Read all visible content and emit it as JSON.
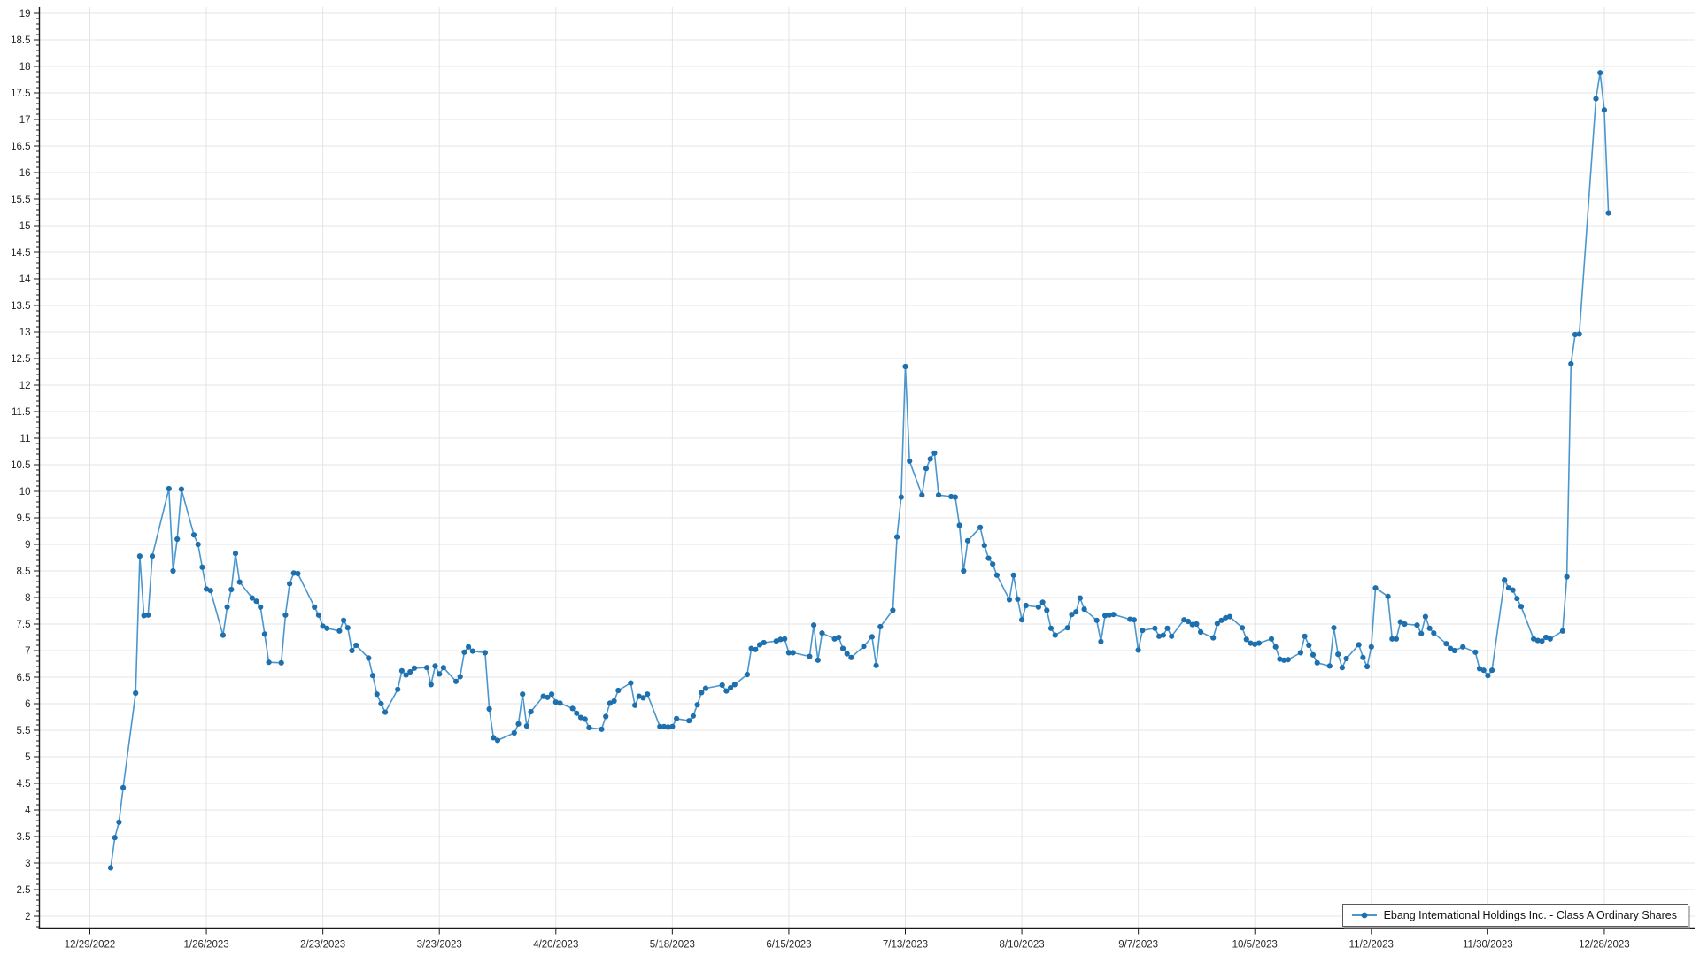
{
  "legend": {
    "label": "Ebang International Holdings Inc. - Class A Ordinary Shares"
  },
  "chart_data": {
    "type": "line",
    "title": "",
    "xlabel": "",
    "ylabel": "",
    "grid": true,
    "legend_position": "bottom-right",
    "colors": {
      "line": "#4a96ce",
      "marker": "#1d6fad",
      "grid": "#e4e4e4",
      "axis": "#1a1a1a",
      "text": "#262626"
    },
    "y_axis": {
      "min_label": 2,
      "max_label": 19,
      "label_step": 0.5,
      "minor_step": 0.1,
      "axis_min": 1.78
    },
    "x_origin_date": "2022-12-29",
    "x_ticks": [
      {
        "label": "12/29/2022",
        "date": "2022-12-29"
      },
      {
        "label": "1/26/2023",
        "date": "2023-01-26"
      },
      {
        "label": "2/23/2023",
        "date": "2023-02-23"
      },
      {
        "label": "3/23/2023",
        "date": "2023-03-23"
      },
      {
        "label": "4/20/2023",
        "date": "2023-04-20"
      },
      {
        "label": "5/18/2023",
        "date": "2023-05-18"
      },
      {
        "label": "6/15/2023",
        "date": "2023-06-15"
      },
      {
        "label": "7/13/2023",
        "date": "2023-07-13"
      },
      {
        "label": "8/10/2023",
        "date": "2023-08-10"
      },
      {
        "label": "9/7/2023",
        "date": "2023-09-07"
      },
      {
        "label": "10/5/2023",
        "date": "2023-10-05"
      },
      {
        "label": "11/2/2023",
        "date": "2023-11-02"
      },
      {
        "label": "11/30/2023",
        "date": "2023-11-30"
      },
      {
        "label": "12/28/2023",
        "date": "2023-12-28"
      }
    ],
    "series": [
      {
        "name": "Ebang International Holdings Inc. - Class A Ordinary Shares",
        "points": [
          [
            "2023-01-03",
            2.91
          ],
          [
            "2023-01-04",
            3.48
          ],
          [
            "2023-01-05",
            3.77
          ],
          [
            "2023-01-06",
            4.42
          ],
          [
            "2023-01-09",
            6.2
          ],
          [
            "2023-01-10",
            8.78
          ],
          [
            "2023-01-11",
            7.66
          ],
          [
            "2023-01-12",
            7.67
          ],
          [
            "2023-01-13",
            8.78
          ],
          [
            "2023-01-17",
            10.05
          ],
          [
            "2023-01-18",
            8.5
          ],
          [
            "2023-01-19",
            9.1
          ],
          [
            "2023-01-20",
            10.04
          ],
          [
            "2023-01-23",
            9.18
          ],
          [
            "2023-01-24",
            9.0
          ],
          [
            "2023-01-25",
            8.57
          ],
          [
            "2023-01-26",
            8.16
          ],
          [
            "2023-01-27",
            8.13
          ],
          [
            "2023-01-30",
            7.29
          ],
          [
            "2023-01-31",
            7.82
          ],
          [
            "2023-02-01",
            8.15
          ],
          [
            "2023-02-02",
            8.83
          ],
          [
            "2023-02-03",
            8.29
          ],
          [
            "2023-02-06",
            7.99
          ],
          [
            "2023-02-07",
            7.93
          ],
          [
            "2023-02-08",
            7.82
          ],
          [
            "2023-02-09",
            7.31
          ],
          [
            "2023-02-10",
            6.78
          ],
          [
            "2023-02-13",
            6.77
          ],
          [
            "2023-02-14",
            7.67
          ],
          [
            "2023-02-15",
            8.26
          ],
          [
            "2023-02-16",
            8.46
          ],
          [
            "2023-02-17",
            8.45
          ],
          [
            "2023-02-21",
            7.82
          ],
          [
            "2023-02-22",
            7.67
          ],
          [
            "2023-02-23",
            7.46
          ],
          [
            "2023-02-24",
            7.42
          ],
          [
            "2023-02-27",
            7.37
          ],
          [
            "2023-02-28",
            7.57
          ],
          [
            "2023-03-01",
            7.43
          ],
          [
            "2023-03-02",
            7.0
          ],
          [
            "2023-03-03",
            7.1
          ],
          [
            "2023-03-06",
            6.86
          ],
          [
            "2023-03-07",
            6.53
          ],
          [
            "2023-03-08",
            6.18
          ],
          [
            "2023-03-09",
            6.0
          ],
          [
            "2023-03-10",
            5.84
          ],
          [
            "2023-03-13",
            6.27
          ],
          [
            "2023-03-14",
            6.62
          ],
          [
            "2023-03-15",
            6.54
          ],
          [
            "2023-03-16",
            6.6
          ],
          [
            "2023-03-17",
            6.67
          ],
          [
            "2023-03-20",
            6.68
          ],
          [
            "2023-03-21",
            6.36
          ],
          [
            "2023-03-22",
            6.71
          ],
          [
            "2023-03-23",
            6.56
          ],
          [
            "2023-03-24",
            6.68
          ],
          [
            "2023-03-27",
            6.42
          ],
          [
            "2023-03-28",
            6.51
          ],
          [
            "2023-03-29",
            6.97
          ],
          [
            "2023-03-30",
            7.07
          ],
          [
            "2023-03-31",
            6.99
          ],
          [
            "2023-04-03",
            6.96
          ],
          [
            "2023-04-04",
            5.9
          ],
          [
            "2023-04-05",
            5.36
          ],
          [
            "2023-04-06",
            5.31
          ],
          [
            "2023-04-10",
            5.45
          ],
          [
            "2023-04-11",
            5.62
          ],
          [
            "2023-04-12",
            6.18
          ],
          [
            "2023-04-13",
            5.58
          ],
          [
            "2023-04-14",
            5.85
          ],
          [
            "2023-04-17",
            6.14
          ],
          [
            "2023-04-18",
            6.12
          ],
          [
            "2023-04-19",
            6.18
          ],
          [
            "2023-04-20",
            6.03
          ],
          [
            "2023-04-21",
            6.01
          ],
          [
            "2023-04-24",
            5.91
          ],
          [
            "2023-04-25",
            5.82
          ],
          [
            "2023-04-26",
            5.74
          ],
          [
            "2023-04-27",
            5.71
          ],
          [
            "2023-04-28",
            5.55
          ],
          [
            "2023-05-01",
            5.52
          ],
          [
            "2023-05-02",
            5.76
          ],
          [
            "2023-05-03",
            6.01
          ],
          [
            "2023-05-04",
            6.05
          ],
          [
            "2023-05-05",
            6.25
          ],
          [
            "2023-05-08",
            6.39
          ],
          [
            "2023-05-09",
            5.97
          ],
          [
            "2023-05-10",
            6.14
          ],
          [
            "2023-05-11",
            6.11
          ],
          [
            "2023-05-12",
            6.18
          ],
          [
            "2023-05-15",
            5.57
          ],
          [
            "2023-05-16",
            5.57
          ],
          [
            "2023-05-17",
            5.56
          ],
          [
            "2023-05-18",
            5.57
          ],
          [
            "2023-05-19",
            5.72
          ],
          [
            "2023-05-22",
            5.68
          ],
          [
            "2023-05-23",
            5.77
          ],
          [
            "2023-05-24",
            5.98
          ],
          [
            "2023-05-25",
            6.21
          ],
          [
            "2023-05-26",
            6.29
          ],
          [
            "2023-05-30",
            6.35
          ],
          [
            "2023-05-31",
            6.24
          ],
          [
            "2023-06-01",
            6.3
          ],
          [
            "2023-06-02",
            6.36
          ],
          [
            "2023-06-05",
            6.55
          ],
          [
            "2023-06-06",
            7.04
          ],
          [
            "2023-06-07",
            7.02
          ],
          [
            "2023-06-08",
            7.11
          ],
          [
            "2023-06-09",
            7.15
          ],
          [
            "2023-06-12",
            7.18
          ],
          [
            "2023-06-13",
            7.21
          ],
          [
            "2023-06-14",
            7.22
          ],
          [
            "2023-06-15",
            6.96
          ],
          [
            "2023-06-16",
            6.96
          ],
          [
            "2023-06-20",
            6.89
          ],
          [
            "2023-06-21",
            7.48
          ],
          [
            "2023-06-22",
            6.82
          ],
          [
            "2023-06-23",
            7.33
          ],
          [
            "2023-06-26",
            7.22
          ],
          [
            "2023-06-27",
            7.25
          ],
          [
            "2023-06-28",
            7.04
          ],
          [
            "2023-06-29",
            6.94
          ],
          [
            "2023-06-30",
            6.87
          ],
          [
            "2023-07-03",
            7.08
          ],
          [
            "2023-07-05",
            7.26
          ],
          [
            "2023-07-06",
            6.72
          ],
          [
            "2023-07-07",
            7.45
          ],
          [
            "2023-07-10",
            7.76
          ],
          [
            "2023-07-11",
            9.14
          ],
          [
            "2023-07-12",
            9.89
          ],
          [
            "2023-07-13",
            12.35
          ],
          [
            "2023-07-14",
            10.57
          ],
          [
            "2023-07-17",
            9.93
          ],
          [
            "2023-07-18",
            10.43
          ],
          [
            "2023-07-19",
            10.61
          ],
          [
            "2023-07-20",
            10.72
          ],
          [
            "2023-07-21",
            9.93
          ],
          [
            "2023-07-24",
            9.9
          ],
          [
            "2023-07-25",
            9.89
          ],
          [
            "2023-07-26",
            9.36
          ],
          [
            "2023-07-27",
            8.5
          ],
          [
            "2023-07-28",
            9.07
          ],
          [
            "2023-07-31",
            9.32
          ],
          [
            "2023-08-01",
            8.98
          ],
          [
            "2023-08-02",
            8.74
          ],
          [
            "2023-08-03",
            8.63
          ],
          [
            "2023-08-04",
            8.42
          ],
          [
            "2023-08-07",
            7.96
          ],
          [
            "2023-08-08",
            8.42
          ],
          [
            "2023-08-09",
            7.97
          ],
          [
            "2023-08-10",
            7.58
          ],
          [
            "2023-08-11",
            7.85
          ],
          [
            "2023-08-14",
            7.82
          ],
          [
            "2023-08-15",
            7.91
          ],
          [
            "2023-08-16",
            7.76
          ],
          [
            "2023-08-17",
            7.42
          ],
          [
            "2023-08-18",
            7.29
          ],
          [
            "2023-08-21",
            7.43
          ],
          [
            "2023-08-22",
            7.68
          ],
          [
            "2023-08-23",
            7.73
          ],
          [
            "2023-08-24",
            7.99
          ],
          [
            "2023-08-25",
            7.78
          ],
          [
            "2023-08-28",
            7.57
          ],
          [
            "2023-08-29",
            7.17
          ],
          [
            "2023-08-30",
            7.66
          ],
          [
            "2023-08-31",
            7.67
          ],
          [
            "2023-09-01",
            7.68
          ],
          [
            "2023-09-05",
            7.59
          ],
          [
            "2023-09-06",
            7.58
          ],
          [
            "2023-09-07",
            7.01
          ],
          [
            "2023-09-08",
            7.38
          ],
          [
            "2023-09-11",
            7.42
          ],
          [
            "2023-09-12",
            7.27
          ],
          [
            "2023-09-13",
            7.29
          ],
          [
            "2023-09-14",
            7.42
          ],
          [
            "2023-09-15",
            7.27
          ],
          [
            "2023-09-18",
            7.58
          ],
          [
            "2023-09-19",
            7.55
          ],
          [
            "2023-09-20",
            7.49
          ],
          [
            "2023-09-21",
            7.5
          ],
          [
            "2023-09-22",
            7.35
          ],
          [
            "2023-09-25",
            7.24
          ],
          [
            "2023-09-26",
            7.51
          ],
          [
            "2023-09-27",
            7.57
          ],
          [
            "2023-09-28",
            7.62
          ],
          [
            "2023-09-29",
            7.64
          ],
          [
            "2023-10-02",
            7.43
          ],
          [
            "2023-10-03",
            7.21
          ],
          [
            "2023-10-04",
            7.14
          ],
          [
            "2023-10-05",
            7.12
          ],
          [
            "2023-10-06",
            7.14
          ],
          [
            "2023-10-09",
            7.22
          ],
          [
            "2023-10-10",
            7.07
          ],
          [
            "2023-10-11",
            6.84
          ],
          [
            "2023-10-12",
            6.82
          ],
          [
            "2023-10-13",
            6.83
          ],
          [
            "2023-10-16",
            6.96
          ],
          [
            "2023-10-17",
            7.27
          ],
          [
            "2023-10-18",
            7.1
          ],
          [
            "2023-10-19",
            6.92
          ],
          [
            "2023-10-20",
            6.77
          ],
          [
            "2023-10-23",
            6.71
          ],
          [
            "2023-10-24",
            7.43
          ],
          [
            "2023-10-25",
            6.93
          ],
          [
            "2023-10-26",
            6.68
          ],
          [
            "2023-10-27",
            6.85
          ],
          [
            "2023-10-30",
            7.11
          ],
          [
            "2023-10-31",
            6.87
          ],
          [
            "2023-11-01",
            6.7
          ],
          [
            "2023-11-02",
            7.07
          ],
          [
            "2023-11-03",
            8.18
          ],
          [
            "2023-11-06",
            8.02
          ],
          [
            "2023-11-07",
            7.22
          ],
          [
            "2023-11-08",
            7.22
          ],
          [
            "2023-11-09",
            7.54
          ],
          [
            "2023-11-10",
            7.5
          ],
          [
            "2023-11-13",
            7.48
          ],
          [
            "2023-11-14",
            7.32
          ],
          [
            "2023-11-15",
            7.64
          ],
          [
            "2023-11-16",
            7.42
          ],
          [
            "2023-11-17",
            7.33
          ],
          [
            "2023-11-20",
            7.13
          ],
          [
            "2023-11-21",
            7.04
          ],
          [
            "2023-11-22",
            7.0
          ],
          [
            "2023-11-24",
            7.07
          ],
          [
            "2023-11-27",
            6.97
          ],
          [
            "2023-11-28",
            6.66
          ],
          [
            "2023-11-29",
            6.63
          ],
          [
            "2023-11-30",
            6.53
          ],
          [
            "2023-12-01",
            6.63
          ],
          [
            "2023-12-04",
            8.33
          ],
          [
            "2023-12-05",
            8.18
          ],
          [
            "2023-12-06",
            8.14
          ],
          [
            "2023-12-07",
            7.98
          ],
          [
            "2023-12-08",
            7.83
          ],
          [
            "2023-12-11",
            7.22
          ],
          [
            "2023-12-12",
            7.19
          ],
          [
            "2023-12-13",
            7.18
          ],
          [
            "2023-12-14",
            7.25
          ],
          [
            "2023-12-15",
            7.22
          ],
          [
            "2023-12-18",
            7.37
          ],
          [
            "2023-12-19",
            8.39
          ],
          [
            "2023-12-20",
            12.4
          ],
          [
            "2023-12-21",
            12.95
          ],
          [
            "2023-12-22",
            12.96
          ],
          [
            "2023-12-26",
            17.39
          ],
          [
            "2023-12-27",
            17.88
          ],
          [
            "2023-12-28",
            17.18
          ],
          [
            "2023-12-29",
            15.24
          ]
        ]
      }
    ]
  }
}
